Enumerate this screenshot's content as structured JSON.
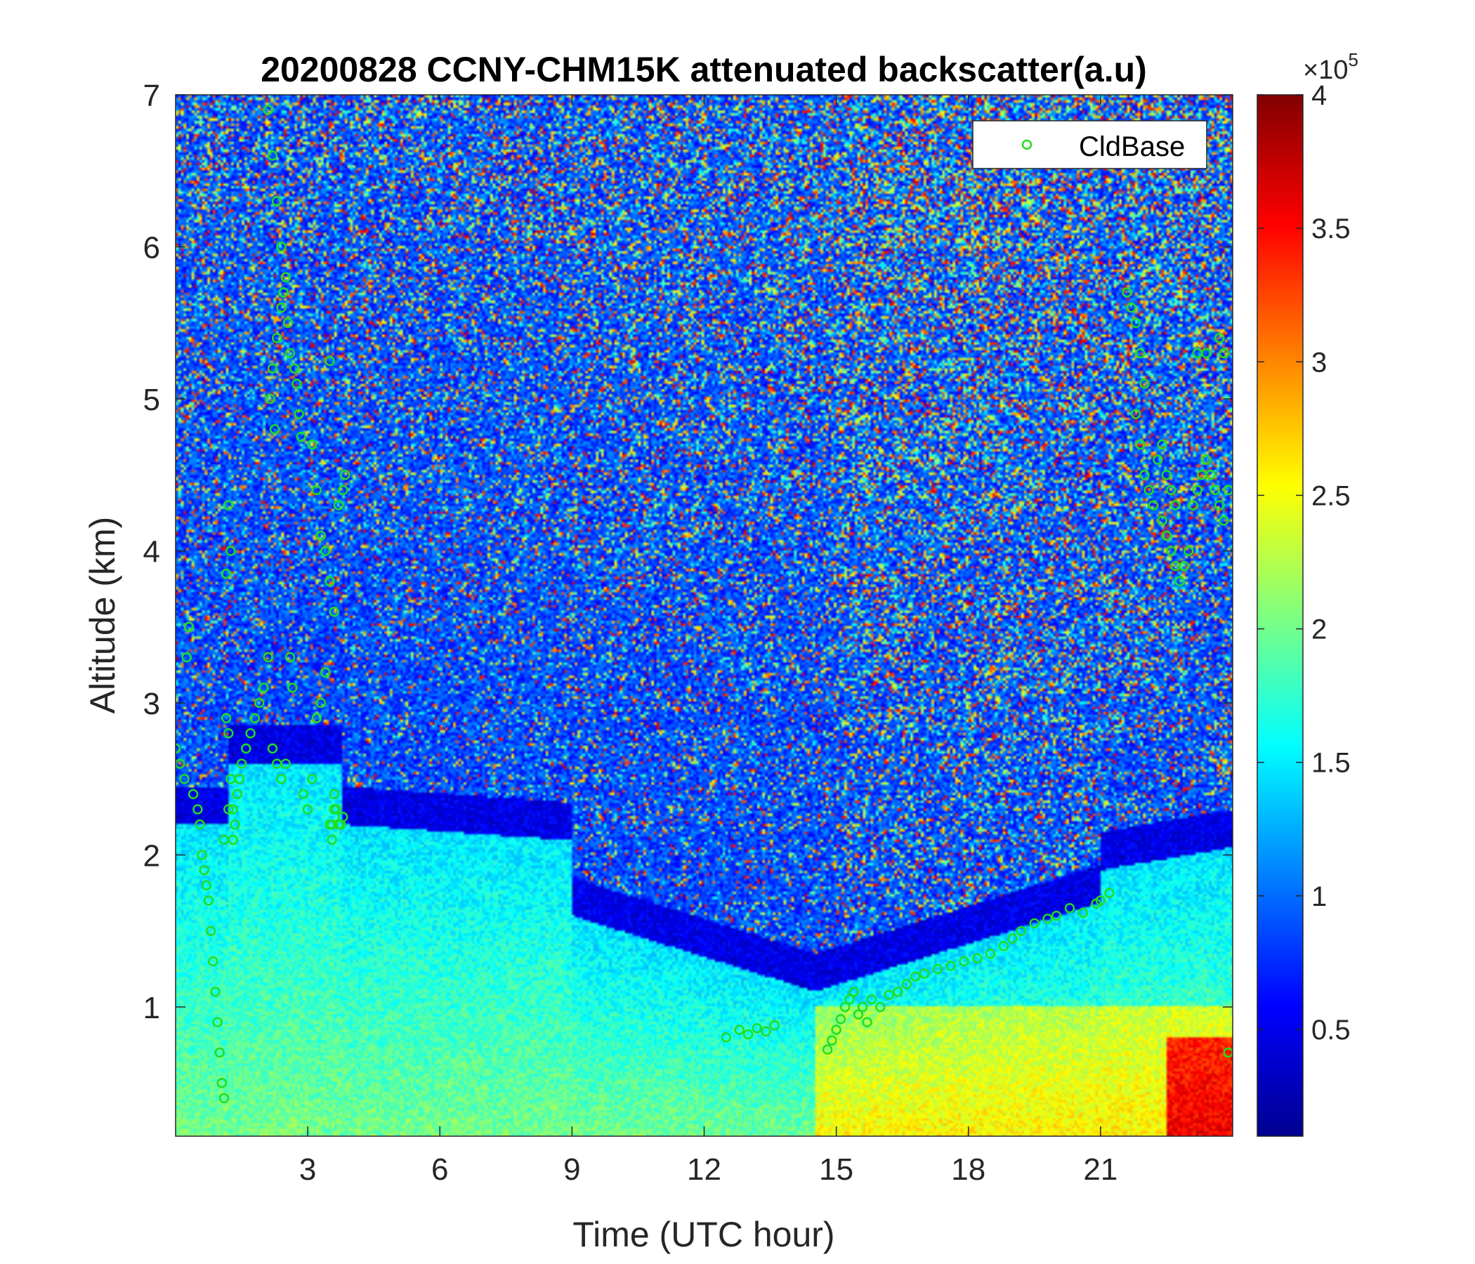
{
  "chart_data": {
    "type": "heatmap",
    "title": "20200828 CCNY-CHM15K attenuated backscatter(a.u)",
    "xlabel": "Time (UTC hour)",
    "ylabel": "Altitude (km)",
    "xlim": [
      0,
      24
    ],
    "ylim": [
      0.15,
      7
    ],
    "xticks": [
      3,
      6,
      9,
      12,
      15,
      18,
      21
    ],
    "xtick_labels": [
      "3",
      "6",
      "9",
      "12",
      "15",
      "18",
      "21"
    ],
    "yticks": [
      1,
      2,
      3,
      4,
      5,
      6,
      7
    ],
    "ytick_labels": [
      "1",
      "2",
      "3",
      "4",
      "5",
      "6",
      "7"
    ],
    "colormap": "jet",
    "colorbar": {
      "range": [
        0.1,
        4
      ],
      "ticks": [
        0.5,
        1,
        1.5,
        2,
        2.5,
        3,
        3.5,
        4
      ],
      "tick_labels": [
        "0.5",
        "1",
        "1.5",
        "2",
        "2.5",
        "3",
        "3.5",
        "4"
      ],
      "multiplier_base": "×10",
      "multiplier_exp": "5"
    },
    "legend": {
      "position": "top-right",
      "entries": [
        "CldBase"
      ]
    },
    "series": [
      {
        "name": "CldBase",
        "marker": "circle",
        "color": "#22dd22",
        "x": [
          0.0,
          0.1,
          0.2,
          0.25,
          0.3,
          0.4,
          0.5,
          0.55,
          0.6,
          0.65,
          0.7,
          0.75,
          0.8,
          0.85,
          0.9,
          0.95,
          1.0,
          1.05,
          1.1,
          1.15,
          1.2,
          1.25,
          1.1,
          1.2,
          1.15,
          1.2,
          1.25,
          1.3,
          1.3,
          1.35,
          1.4,
          1.45,
          1.5,
          1.6,
          1.7,
          1.8,
          1.9,
          2.0,
          2.1,
          2.2,
          2.3,
          2.4,
          2.5,
          2.1,
          2.2,
          2.3,
          2.4,
          2.5,
          2.15,
          2.2,
          2.25,
          2.3,
          2.4,
          2.45,
          2.55,
          2.6,
          2.7,
          2.8,
          2.75,
          2.85,
          2.6,
          2.65,
          2.9,
          3.0,
          3.1,
          3.2,
          3.3,
          3.4,
          3.5,
          3.55,
          3.6,
          3.65,
          3.7,
          3.1,
          3.2,
          3.3,
          3.4,
          3.5,
          3.6,
          3.7,
          3.8,
          3.85,
          3.5,
          3.55,
          3.6,
          3.75,
          3.8,
          12.5,
          12.8,
          13.0,
          13.2,
          13.4,
          13.6,
          14.8,
          14.9,
          15.0,
          15.1,
          15.2,
          15.3,
          15.4,
          15.5,
          15.6,
          15.7,
          15.8,
          16.0,
          16.2,
          16.4,
          16.6,
          16.8,
          17.0,
          17.3,
          17.6,
          17.9,
          18.2,
          18.5,
          18.8,
          19.0,
          19.2,
          19.5,
          19.8,
          20.0,
          20.3,
          20.6,
          20.9,
          21.0,
          21.2,
          21.6,
          21.7,
          21.8,
          21.9,
          22.0,
          21.8,
          21.9,
          22.0,
          22.1,
          22.2,
          22.3,
          22.4,
          22.5,
          22.6,
          22.7,
          22.4,
          22.5,
          22.6,
          22.7,
          22.8,
          22.9,
          23.0,
          23.1,
          23.2,
          23.3,
          23.4,
          23.5,
          23.6,
          23.7,
          23.8,
          23.9,
          23.2,
          23.4,
          23.7,
          23.8,
          23.9
        ],
        "y": [
          2.7,
          2.6,
          2.5,
          3.3,
          3.5,
          2.4,
          2.3,
          2.2,
          2.0,
          1.9,
          1.8,
          1.7,
          1.5,
          1.3,
          1.1,
          0.9,
          0.7,
          0.5,
          0.4,
          2.9,
          2.8,
          2.5,
          2.1,
          2.3,
          3.85,
          4.3,
          4.0,
          2.3,
          2.1,
          2.2,
          2.4,
          2.5,
          2.6,
          2.7,
          2.8,
          2.9,
          3.0,
          3.1,
          3.3,
          2.7,
          2.6,
          2.5,
          2.6,
          6.9,
          6.6,
          6.3,
          6.0,
          5.8,
          5.0,
          5.2,
          4.8,
          5.4,
          5.6,
          5.7,
          5.5,
          5.3,
          5.2,
          4.9,
          5.1,
          4.75,
          3.3,
          3.1,
          2.4,
          2.3,
          2.5,
          2.9,
          3.0,
          3.2,
          2.2,
          2.1,
          2.4,
          2.3,
          2.2,
          4.7,
          4.4,
          4.1,
          4.0,
          3.8,
          3.6,
          4.3,
          4.4,
          4.5,
          5.25,
          2.2,
          2.3,
          2.2,
          2.25,
          0.8,
          0.85,
          0.82,
          0.86,
          0.84,
          0.88,
          0.72,
          0.78,
          0.85,
          0.92,
          1.0,
          1.05,
          1.1,
          0.95,
          1.0,
          0.9,
          1.05,
          1.0,
          1.08,
          1.1,
          1.15,
          1.2,
          1.22,
          1.25,
          1.27,
          1.3,
          1.32,
          1.35,
          1.4,
          1.45,
          1.5,
          1.55,
          1.58,
          1.6,
          1.65,
          1.62,
          1.68,
          1.7,
          1.75,
          5.7,
          5.6,
          5.5,
          5.3,
          5.1,
          4.9,
          4.7,
          4.5,
          4.4,
          4.3,
          4.6,
          4.7,
          4.5,
          4.4,
          4.3,
          4.2,
          4.1,
          4.0,
          3.9,
          3.8,
          3.9,
          4.0,
          4.3,
          4.4,
          4.5,
          4.6,
          4.5,
          4.4,
          4.3,
          4.2,
          4.4,
          5.3,
          5.3,
          5.4,
          5.3,
          0.7
        ]
      }
    ]
  }
}
